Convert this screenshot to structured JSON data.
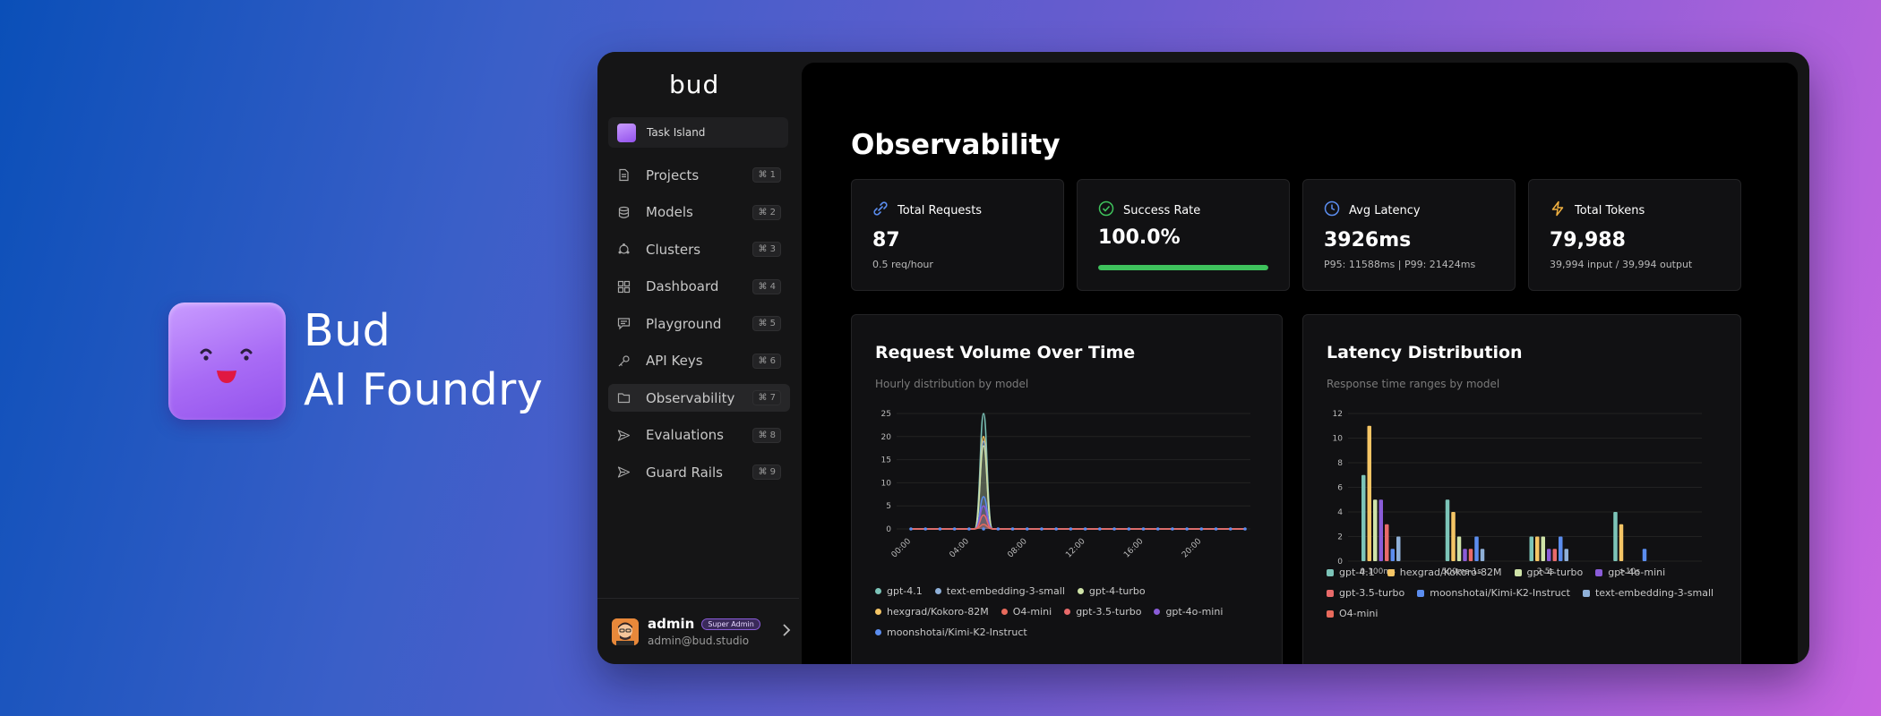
{
  "brand": {
    "line1": "Bud",
    "line2": "AI Foundry"
  },
  "sidebar": {
    "logo": "bud",
    "workspace": "Task Island",
    "items": [
      {
        "label": "Projects",
        "key": "⌘ 1",
        "icon": "document-icon"
      },
      {
        "label": "Models",
        "key": "⌘ 2",
        "icon": "database-icon"
      },
      {
        "label": "Clusters",
        "key": "⌘ 3",
        "icon": "cluster-icon"
      },
      {
        "label": "Dashboard",
        "key": "⌘ 4",
        "icon": "grid-icon"
      },
      {
        "label": "Playground",
        "key": "⌘ 5",
        "icon": "chat-icon"
      },
      {
        "label": "API Keys",
        "key": "⌘ 6",
        "icon": "key-icon"
      },
      {
        "label": "Observability",
        "key": "⌘ 7",
        "icon": "folder-icon",
        "active": true
      },
      {
        "label": "Evaluations",
        "key": "⌘ 8",
        "icon": "send-icon"
      },
      {
        "label": "Guard Rails",
        "key": "⌘ 9",
        "icon": "send-icon"
      }
    ],
    "user": {
      "name": "admin",
      "badge": "Super Admin",
      "email": "admin@bud.studio"
    }
  },
  "page": {
    "title": "Observability"
  },
  "stats": [
    {
      "label": "Total Requests",
      "value": "87",
      "sub": "0.5 req/hour",
      "icon": "link-icon",
      "color": "#5b8def"
    },
    {
      "label": "Success Rate",
      "value": "100.0%",
      "progress": 1.0,
      "icon": "check-circle-icon",
      "color": "#3ec25c"
    },
    {
      "label": "Avg Latency",
      "value": "3926ms",
      "sub": "P95: 11588ms | P99: 21424ms",
      "icon": "clock-icon",
      "color": "#5b8def"
    },
    {
      "label": "Total Tokens",
      "value": "79,988",
      "sub": "39,994 input / 39,994 output",
      "icon": "lightning-icon",
      "color": "#f0b040"
    }
  ],
  "charts": {
    "volume": {
      "title": "Request Volume Over Time",
      "subtitle": "Hourly distribution by model"
    },
    "latency": {
      "title": "Latency Distribution",
      "subtitle": "Response time ranges by model"
    }
  },
  "chart_data": [
    {
      "type": "area",
      "title": "Request Volume Over Time",
      "subtitle": "Hourly distribution by model",
      "x_ticks": [
        "00:00",
        "04:00",
        "08:00",
        "12:00",
        "16:00",
        "20:00"
      ],
      "ylim": [
        0,
        25
      ],
      "y_ticks": [
        0,
        5,
        10,
        15,
        20,
        25
      ],
      "peak_hour": 5,
      "hours": 24,
      "series": [
        {
          "name": "gpt-4.1",
          "color": "#7cc4b8",
          "peak": 25
        },
        {
          "name": "text-embedding-3-small",
          "color": "#8fb0d8",
          "peak": 19
        },
        {
          "name": "gpt-4-turbo",
          "color": "#cfe3a8",
          "peak": 18
        },
        {
          "name": "hexgrad/Kokoro-82M",
          "color": "#f5c565",
          "peak": 20
        },
        {
          "name": "O4-mini",
          "color": "#e86a5c",
          "peak": 1
        },
        {
          "name": "gpt-3.5-turbo",
          "color": "#e86a6a",
          "peak": 3
        },
        {
          "name": "gpt-4o-mini",
          "color": "#8a5cd8",
          "peak": 5
        },
        {
          "name": "moonshotai/Kimi-K2-Instruct",
          "color": "#5b8def",
          "peak": 7
        }
      ]
    },
    {
      "type": "bar",
      "title": "Latency Distribution",
      "subtitle": "Response time ranges by model",
      "categories": [
        "0-100ms",
        "500ms-1s",
        "2-5s",
        ">10s"
      ],
      "ylim": [
        0,
        12
      ],
      "y_ticks": [
        0,
        2,
        4,
        6,
        8,
        10,
        12
      ],
      "series": [
        {
          "name": "gpt-4.1",
          "color": "#7cc4b8",
          "values": [
            7,
            5,
            2,
            4
          ]
        },
        {
          "name": "hexgrad/Kokoro-82M",
          "color": "#f5c565",
          "values": [
            11,
            4,
            2,
            3
          ]
        },
        {
          "name": "gpt-4-turbo",
          "color": "#cfe3a8",
          "values": [
            5,
            2,
            2,
            0
          ]
        },
        {
          "name": "gpt-4o-mini",
          "color": "#8a5cd8",
          "values": [
            5,
            1,
            1,
            0
          ]
        },
        {
          "name": "gpt-3.5-turbo",
          "color": "#e86a6a",
          "values": [
            3,
            1,
            1,
            0
          ]
        },
        {
          "name": "moonshotai/Kimi-K2-Instruct",
          "color": "#5b8def",
          "values": [
            1,
            2,
            2,
            1
          ]
        },
        {
          "name": "text-embedding-3-small",
          "color": "#8fb0d8",
          "values": [
            2,
            1,
            1,
            0
          ]
        },
        {
          "name": "O4-mini",
          "color": "#e86a5c",
          "values": [
            0,
            0,
            0,
            0
          ]
        }
      ]
    }
  ]
}
